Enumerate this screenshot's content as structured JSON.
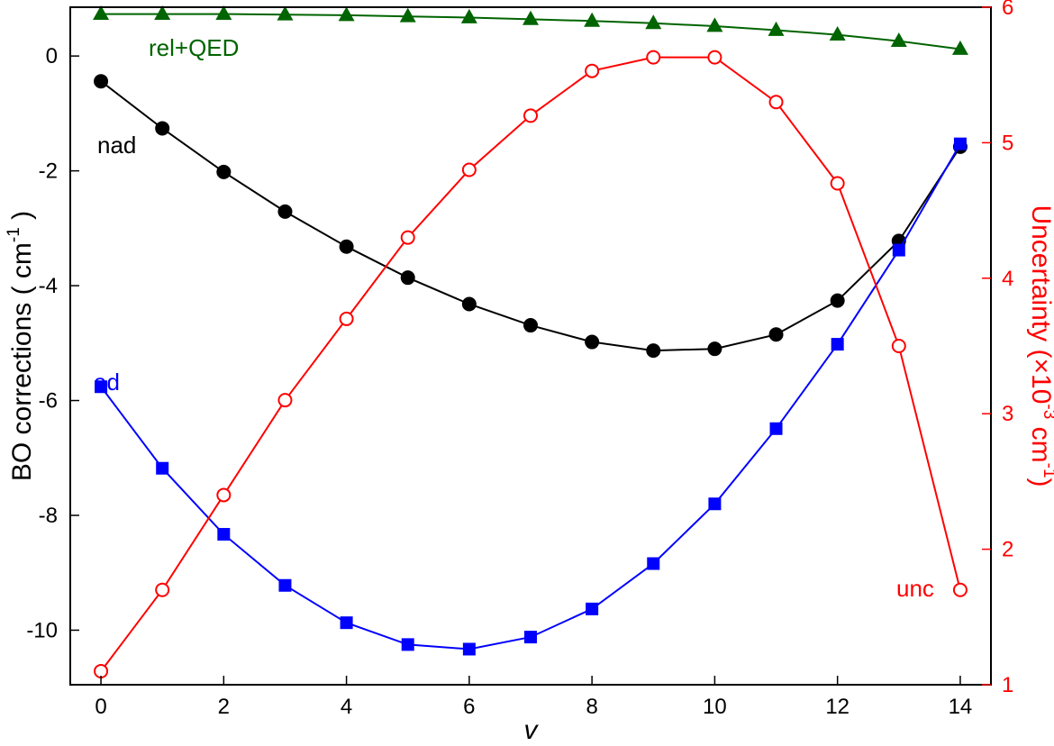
{
  "chart_data": {
    "type": "line",
    "x": [
      0,
      1,
      2,
      3,
      4,
      5,
      6,
      7,
      8,
      9,
      10,
      11,
      12,
      13,
      14
    ],
    "xlim": [
      -0.5,
      14.5
    ],
    "xticks": [
      0,
      2,
      4,
      6,
      8,
      10,
      12,
      14
    ],
    "xlabel": "v",
    "left_axis": {
      "ylim": [
        -10.95,
        0.85
      ],
      "yticks": [
        0,
        -2,
        -4,
        -6,
        -8,
        -10
      ],
      "ylabel_main": "BO corrections ( cm",
      "ylabel_sup": "-1",
      "ylabel_end": " )",
      "color": "#000000"
    },
    "right_axis": {
      "ylim": [
        1.0,
        6.0
      ],
      "yticks": [
        1,
        2,
        3,
        4,
        5,
        6
      ],
      "ylabel_part1": "Uncertainty (×10",
      "ylabel_sup1": "-3",
      "ylabel_part2": " cm",
      "ylabel_sup2": "-1",
      "ylabel_end": ")",
      "color": "#ff0000"
    },
    "series": [
      {
        "name": "rel+QED",
        "axis": "left",
        "color": "#006400",
        "marker": "triangle",
        "values": [
          0.73,
          0.73,
          0.73,
          0.72,
          0.71,
          0.69,
          0.67,
          0.64,
          0.61,
          0.57,
          0.52,
          0.45,
          0.37,
          0.26,
          0.12
        ]
      },
      {
        "name": "nad",
        "axis": "left",
        "color": "#000000",
        "marker": "circle",
        "values": [
          -0.44,
          -1.26,
          -2.02,
          -2.71,
          -3.32,
          -3.86,
          -4.32,
          -4.69,
          -4.98,
          -5.13,
          -5.1,
          -4.85,
          -4.26,
          -3.22,
          -1.58
        ]
      },
      {
        "name": "ad",
        "axis": "left",
        "color": "#0000ff",
        "marker": "square",
        "values": [
          -5.76,
          -7.18,
          -8.33,
          -9.22,
          -9.87,
          -10.25,
          -10.33,
          -10.12,
          -9.63,
          -8.84,
          -7.8,
          -6.49,
          -5.02,
          -3.38,
          -1.53
        ]
      },
      {
        "name": "unc",
        "axis": "right",
        "color": "#ff0000",
        "marker": "open-circle",
        "values": [
          1.1,
          1.7,
          2.4,
          3.1,
          3.7,
          4.3,
          4.8,
          5.2,
          5.53,
          5.63,
          5.63,
          5.3,
          4.7,
          3.5,
          1.7
        ]
      }
    ],
    "annotations": [
      {
        "text": "rel+QED",
        "series": "rel+QED",
        "color": "#006400"
      },
      {
        "text": "nad",
        "series": "nad",
        "color": "#000000"
      },
      {
        "text": "ad",
        "series": "ad",
        "color": "#0000ff"
      },
      {
        "text": "unc",
        "series": "unc",
        "color": "#ff0000"
      }
    ]
  }
}
